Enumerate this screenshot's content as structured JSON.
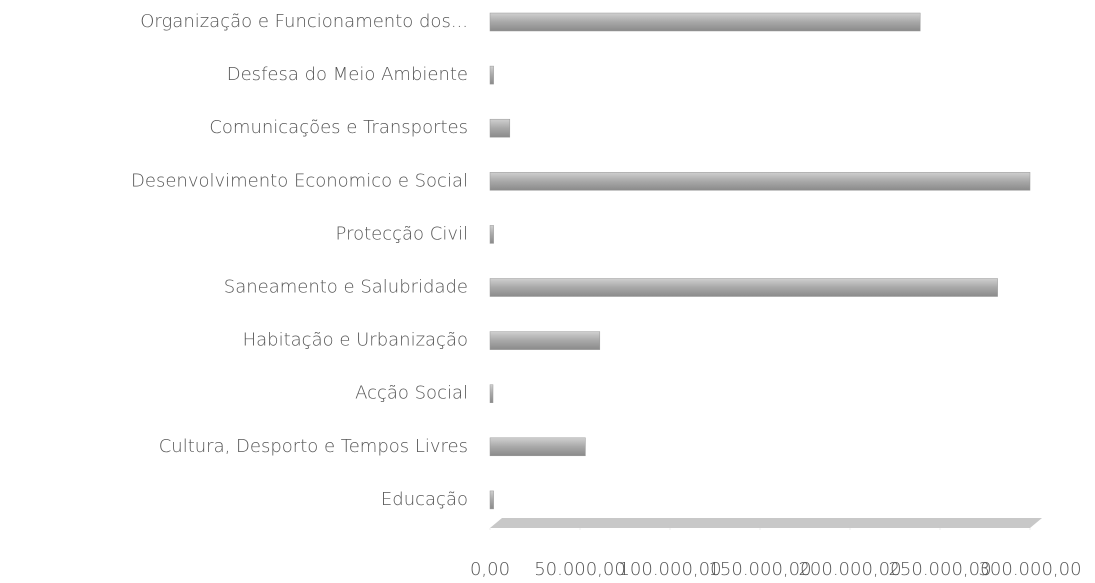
{
  "chart_data": {
    "type": "bar",
    "orientation": "horizontal",
    "categories": [
      "Organização e Funcionamento dos...",
      "Desfesa do Meio Ambiente",
      "Comunicações e Transportes",
      "Desenvolvimento Economico e Social",
      "Protecção Civil",
      "Saneamento e Salubridade",
      "Habitação e Urbanização",
      "Acção Social",
      "Cultura, Desporto e Tempos Livres",
      "Educação"
    ],
    "values": [
      239000,
      2000,
      11000,
      300000,
      2000,
      282000,
      61000,
      1500,
      53000,
      2000
    ],
    "color": "#a6a6a6",
    "xlim": [
      0,
      300000
    ],
    "xticks": [
      {
        "value": 0,
        "label": "0,00"
      },
      {
        "value": 50000,
        "label": "50.000,00"
      },
      {
        "value": 100000,
        "label": "100.000,00"
      },
      {
        "value": 150000,
        "label": "150.000,00"
      },
      {
        "value": 200000,
        "label": "200.000,00"
      },
      {
        "value": 250000,
        "label": "250.000,00"
      },
      {
        "value": 300000,
        "label": "300.000,00"
      }
    ],
    "grid": false
  }
}
